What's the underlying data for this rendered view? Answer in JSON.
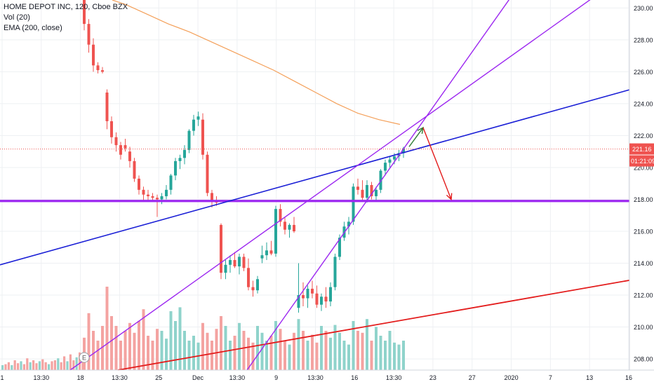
{
  "chart_data": {
    "type": "candlestick",
    "legend": {
      "title": "HOME DEPOT INC, 120, Cboe BZX",
      "indicators": [
        "Vol (20)",
        "EMA (200, close)"
      ]
    },
    "colors": {
      "up": "#26a69a",
      "down": "#ef5350",
      "vol_up": "#8fd3cb",
      "vol_down": "#f4a3a1",
      "ema": "#f4a05a",
      "grid": "#eef0f3",
      "price_label": "#ef5350"
    },
    "y_axis": {
      "range": [
        207.3,
        230.5
      ],
      "ticks": [
        "230.00",
        "228.00",
        "226.00",
        "224.00",
        "222.00",
        "220.00",
        "218.00",
        "216.00",
        "214.00",
        "212.00",
        "210.00",
        "208.00"
      ]
    },
    "x_axis": {
      "ticks": [
        "1",
        "13:30",
        "18",
        "13:30",
        "25",
        "Dec",
        "13:30",
        "9",
        "13:30",
        "16",
        "13:30",
        "23",
        "27",
        "2020",
        "7",
        "13",
        "16"
      ]
    },
    "last_price": "221.16",
    "countdown": "01:21:09",
    "candles": [
      [
        231.1,
        231.4,
        228.6,
        229.0
      ],
      [
        229.0,
        229.3,
        227.2,
        227.7
      ],
      [
        227.7,
        228.1,
        226.0,
        226.4
      ],
      [
        226.4,
        226.6,
        225.9,
        226.1
      ],
      [
        226.1,
        226.3,
        225.9,
        226.0
      ],
      [
        224.7,
        224.9,
        222.4,
        222.9
      ],
      [
        222.9,
        223.2,
        221.5,
        221.9
      ],
      [
        221.9,
        222.2,
        221.0,
        221.4
      ],
      [
        221.4,
        221.6,
        220.5,
        220.8
      ],
      [
        221.4,
        221.8,
        221.0,
        221.2
      ],
      [
        221.0,
        221.3,
        220.0,
        220.4
      ],
      [
        220.4,
        220.6,
        219.1,
        219.3
      ],
      [
        219.3,
        219.5,
        218.3,
        218.6
      ],
      [
        218.6,
        218.8,
        217.9,
        218.3
      ],
      [
        218.3,
        218.6,
        217.9,
        218.2
      ],
      [
        218.2,
        218.4,
        217.9,
        218.1
      ],
      [
        218.1,
        218.3,
        216.9,
        218.0
      ],
      [
        218.0,
        218.4,
        217.7,
        218.2
      ],
      [
        218.2,
        218.9,
        218.0,
        218.6
      ],
      [
        218.6,
        219.6,
        218.3,
        219.5
      ],
      [
        219.5,
        220.6,
        219.2,
        220.4
      ],
      [
        220.4,
        220.8,
        219.9,
        220.6
      ],
      [
        220.6,
        221.4,
        220.2,
        221.1
      ],
      [
        221.1,
        222.4,
        220.9,
        222.3
      ],
      [
        222.3,
        223.3,
        222.0,
        223.0
      ],
      [
        223.0,
        223.5,
        222.6,
        223.2
      ],
      [
        223.0,
        223.4,
        220.5,
        220.8
      ],
      [
        220.8,
        221.0,
        218.2,
        218.4
      ],
      [
        218.4,
        218.6,
        217.5,
        217.9
      ],
      [
        217.9,
        218.2,
        217.6,
        217.8
      ],
      [
        216.4,
        216.5,
        213.0,
        213.4
      ],
      [
        213.4,
        214.2,
        213.0,
        213.9
      ],
      [
        213.9,
        214.5,
        213.4,
        214.2
      ],
      [
        214.2,
        214.7,
        213.7,
        213.8
      ],
      [
        213.8,
        214.6,
        213.3,
        214.4
      ],
      [
        214.4,
        214.6,
        213.5,
        213.7
      ],
      [
        213.7,
        214.3,
        212.3,
        212.5
      ],
      [
        212.5,
        212.9,
        211.9,
        212.3
      ],
      [
        212.3,
        213.2,
        212.1,
        213.0
      ],
      [
        214.3,
        215.1,
        214.0,
        214.5
      ],
      [
        214.5,
        215.3,
        214.2,
        214.8
      ],
      [
        214.8,
        215.4,
        214.5,
        214.6
      ],
      [
        214.6,
        217.6,
        214.4,
        217.4
      ],
      [
        217.4,
        217.7,
        216.3,
        216.6
      ],
      [
        216.6,
        216.9,
        215.8,
        216.1
      ],
      [
        216.1,
        216.5,
        215.6,
        216.4
      ],
      [
        216.4,
        216.9,
        215.9,
        216.0
      ],
      [
        211.2,
        214.0,
        210.9,
        212.0
      ],
      [
        212.0,
        212.8,
        211.3,
        211.8
      ],
      [
        211.8,
        212.6,
        211.2,
        212.4
      ],
      [
        212.4,
        212.9,
        211.8,
        212.1
      ],
      [
        212.1,
        212.6,
        211.2,
        211.4
      ],
      [
        211.4,
        212.1,
        211.0,
        211.9
      ],
      [
        211.9,
        212.5,
        211.2,
        211.6
      ],
      [
        211.6,
        212.8,
        211.3,
        212.5
      ],
      [
        212.5,
        214.6,
        212.3,
        214.4
      ],
      [
        214.4,
        215.8,
        214.2,
        215.6
      ],
      [
        215.6,
        216.6,
        215.4,
        216.3
      ],
      [
        216.3,
        216.9,
        215.8,
        216.6
      ],
      [
        216.6,
        219.0,
        216.4,
        218.8
      ],
      [
        218.8,
        219.3,
        218.3,
        218.6
      ],
      [
        218.6,
        219.2,
        217.9,
        218.1
      ],
      [
        218.1,
        219.2,
        217.8,
        218.9
      ],
      [
        218.9,
        219.1,
        218.0,
        218.2
      ],
      [
        218.2,
        218.8,
        217.9,
        218.6
      ],
      [
        218.6,
        219.9,
        218.4,
        219.8
      ],
      [
        219.8,
        220.5,
        219.5,
        220.3
      ],
      [
        220.3,
        220.7,
        220.0,
        220.5
      ],
      [
        220.5,
        220.9,
        220.2,
        220.7
      ],
      [
        220.7,
        221.1,
        220.4,
        220.9
      ],
      [
        220.9,
        221.3,
        220.6,
        221.2
      ]
    ],
    "volumes": [
      0.33,
      0.58,
      0.4,
      0.3,
      0.45,
      0.85,
      0.55,
      0.45,
      0.3,
      0.4,
      0.48,
      0.38,
      0.5,
      0.62,
      0.35,
      0.3,
      0.42,
      0.4,
      0.32,
      0.6,
      0.5,
      0.64,
      0.4,
      0.3,
      0.35,
      0.28,
      0.48,
      0.38,
      0.3,
      0.42,
      0.55,
      0.45,
      0.3,
      0.35,
      0.48,
      0.4,
      0.33,
      0.28,
      0.45,
      0.38,
      0.3,
      0.35,
      0.5,
      0.42,
      0.3,
      0.26,
      0.38,
      0.52,
      0.4,
      0.3,
      0.36,
      0.28,
      0.45,
      0.4,
      0.33,
      0.46,
      0.38,
      0.3,
      0.26,
      0.5,
      0.4,
      0.38,
      0.52,
      0.3,
      0.44,
      0.35,
      0.3,
      0.4,
      0.28,
      0.26,
      0.3
    ],
    "ema_200": [
      [
        160,
        230.5
      ],
      [
        180,
        230.2
      ],
      [
        210,
        229.6
      ],
      [
        240,
        229.0
      ],
      [
        270,
        228.5
      ],
      [
        300,
        227.9
      ],
      [
        330,
        227.3
      ],
      [
        360,
        226.7
      ],
      [
        390,
        226.1
      ],
      [
        420,
        225.4
      ],
      [
        450,
        224.7
      ],
      [
        480,
        224.0
      ],
      [
        510,
        223.4
      ],
      [
        540,
        223.0
      ],
      [
        570,
        222.7
      ]
    ],
    "drawings": {
      "horizontal_level": 217.9,
      "blue_trendline": [
        [
          0,
          213.9
        ],
        [
          932,
          225.3
        ]
      ],
      "red_trendline": [
        [
          168,
          207.3
        ],
        [
          932,
          213.2
        ]
      ],
      "purple_channel_a": [
        [
          100,
          207.3
        ],
        [
          850,
          230.8
        ]
      ],
      "purple_channel_b": [
        [
          352,
          207.3
        ],
        [
          730,
          230.8
        ]
      ],
      "green_arrow": [
        [
          583,
          221.3
        ],
        [
          603,
          222.5
        ]
      ],
      "red_arrow": [
        [
          603,
          222.5
        ],
        [
          643,
          218.0
        ]
      ]
    }
  }
}
